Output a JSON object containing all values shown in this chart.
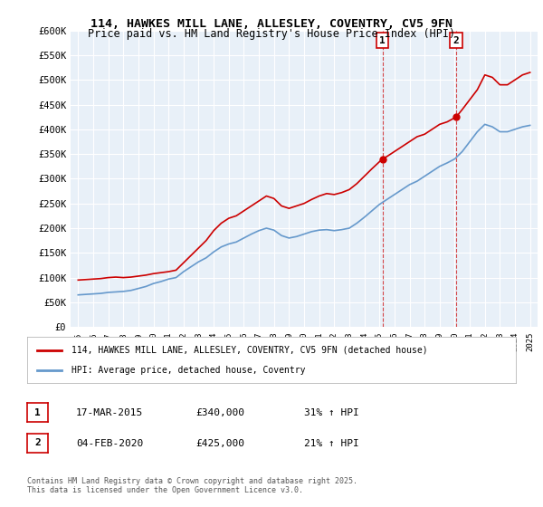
{
  "title_line1": "114, HAWKES MILL LANE, ALLESLEY, COVENTRY, CV5 9FN",
  "title_line2": "Price paid vs. HM Land Registry's House Price Index (HPI)",
  "xlabel": "",
  "ylabel": "",
  "ylim": [
    0,
    600000
  ],
  "ytick_step": 50000,
  "background_color": "#ffffff",
  "plot_bg_color": "#e8f0f8",
  "grid_color": "#ffffff",
  "red_color": "#cc0000",
  "blue_color": "#6699cc",
  "marker1_x": 2015.2,
  "marker2_x": 2020.1,
  "marker1_label": "1",
  "marker2_label": "2",
  "annotation1": [
    "1",
    "17-MAR-2015",
    "£340,000",
    "31% ↑ HPI"
  ],
  "annotation2": [
    "2",
    "04-FEB-2020",
    "£425,000",
    "21% ↑ HPI"
  ],
  "legend_line1": "114, HAWKES MILL LANE, ALLESLEY, COVENTRY, CV5 9FN (detached house)",
  "legend_line2": "HPI: Average price, detached house, Coventry",
  "footer": "Contains HM Land Registry data © Crown copyright and database right 2025.\nThis data is licensed under the Open Government Licence v3.0.",
  "red_x": [
    1995,
    1995.5,
    1996,
    1996.5,
    1997,
    1997.5,
    1998,
    1998.5,
    1999,
    1999.5,
    2000,
    2000.5,
    2001,
    2001.5,
    2002,
    2002.5,
    2003,
    2003.5,
    2004,
    2004.5,
    2005,
    2005.5,
    2006,
    2006.5,
    2007,
    2007.5,
    2008,
    2008.5,
    2009,
    2009.5,
    2010,
    2010.5,
    2011,
    2011.5,
    2012,
    2012.5,
    2013,
    2013.5,
    2014,
    2014.5,
    2015.2,
    2015.5,
    2016,
    2016.5,
    2017,
    2017.5,
    2018,
    2018.5,
    2019,
    2019.5,
    2020.1,
    2020.5,
    2021,
    2021.5,
    2022,
    2022.5,
    2023,
    2023.5,
    2024,
    2024.5,
    2025
  ],
  "red_y": [
    95000,
    96000,
    97000,
    98000,
    100000,
    101000,
    100000,
    101000,
    103000,
    105000,
    108000,
    110000,
    112000,
    115000,
    130000,
    145000,
    160000,
    175000,
    195000,
    210000,
    220000,
    225000,
    235000,
    245000,
    255000,
    265000,
    260000,
    245000,
    240000,
    245000,
    250000,
    258000,
    265000,
    270000,
    268000,
    272000,
    278000,
    290000,
    305000,
    320000,
    340000,
    345000,
    355000,
    365000,
    375000,
    385000,
    390000,
    400000,
    410000,
    415000,
    425000,
    440000,
    460000,
    480000,
    510000,
    505000,
    490000,
    490000,
    500000,
    510000,
    515000
  ],
  "blue_x": [
    1995,
    1995.5,
    1996,
    1996.5,
    1997,
    1997.5,
    1998,
    1998.5,
    1999,
    1999.5,
    2000,
    2000.5,
    2001,
    2001.5,
    2002,
    2002.5,
    2003,
    2003.5,
    2004,
    2004.5,
    2005,
    2005.5,
    2006,
    2006.5,
    2007,
    2007.5,
    2008,
    2008.5,
    2009,
    2009.5,
    2010,
    2010.5,
    2011,
    2011.5,
    2012,
    2012.5,
    2013,
    2013.5,
    2014,
    2014.5,
    2015,
    2015.5,
    2016,
    2016.5,
    2017,
    2017.5,
    2018,
    2018.5,
    2019,
    2019.5,
    2020,
    2020.5,
    2021,
    2021.5,
    2022,
    2022.5,
    2023,
    2023.5,
    2024,
    2024.5,
    2025
  ],
  "blue_y": [
    65000,
    66000,
    67000,
    68000,
    70000,
    71000,
    72000,
    74000,
    78000,
    82000,
    88000,
    92000,
    97000,
    100000,
    112000,
    122000,
    132000,
    140000,
    152000,
    162000,
    168000,
    172000,
    180000,
    188000,
    195000,
    200000,
    196000,
    185000,
    180000,
    183000,
    188000,
    193000,
    196000,
    197000,
    195000,
    197000,
    200000,
    210000,
    222000,
    235000,
    248000,
    258000,
    268000,
    278000,
    288000,
    295000,
    305000,
    315000,
    325000,
    332000,
    340000,
    355000,
    375000,
    395000,
    410000,
    405000,
    395000,
    395000,
    400000,
    405000,
    408000
  ]
}
